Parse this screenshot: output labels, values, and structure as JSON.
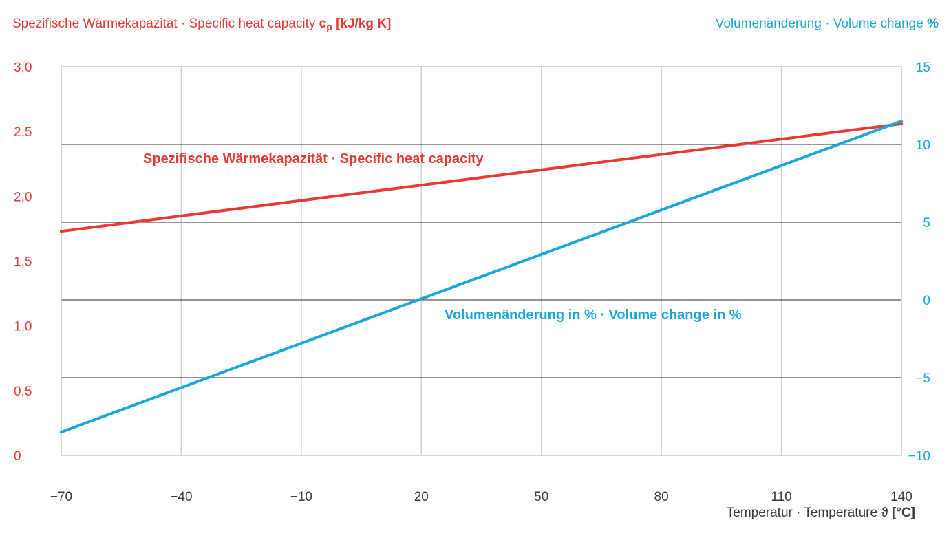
{
  "chart_data": {
    "type": "line",
    "left_axis": {
      "label": "Spezifische Wärmekapazität · Specific heat capacity",
      "symbol": "c",
      "symbol_sub": "p",
      "unit": "[kJ/kg K]",
      "ylim": [
        0,
        3.0
      ],
      "ticks": [
        "0",
        "0,5",
        "1,0",
        "1,5",
        "2,0",
        "2,5",
        "3,0"
      ],
      "color": "#e63a32"
    },
    "right_axis": {
      "label": "Volumenänderung · Volume change",
      "unit": "%",
      "ylim": [
        -10,
        15
      ],
      "ticks": [
        "−10",
        "−5",
        "0",
        "5",
        "10",
        "15"
      ],
      "color": "#19a7de"
    },
    "x_axis": {
      "label": "Temperatur · Temperature",
      "symbol": "ϑ",
      "unit": "[°C]",
      "xlim": [
        -70,
        140
      ],
      "ticks": [
        "−70",
        "−40",
        "−10",
        "20",
        "50",
        "80",
        "110",
        "140"
      ]
    },
    "grid": true,
    "series": [
      {
        "name": "Spezifische Wärmekapazität · Specific heat capacity",
        "axis": "left",
        "color": "#e63a32",
        "x": [
          -70,
          140
        ],
        "y": [
          1.73,
          2.56
        ]
      },
      {
        "name": "Volumenänderung in % · Volume change in %",
        "axis": "right",
        "color": "#19a7de",
        "x": [
          -70,
          140
        ],
        "y": [
          -8.5,
          11.5
        ]
      }
    ]
  }
}
